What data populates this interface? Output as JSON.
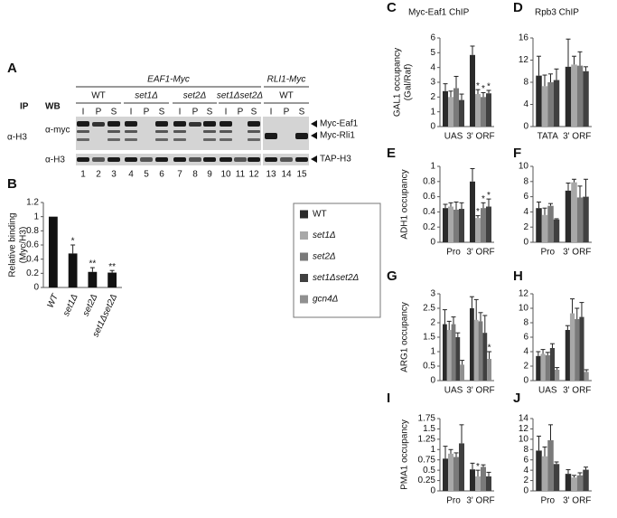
{
  "blot": {
    "panel": "A",
    "ip_header": "IP",
    "wb_header": "WB",
    "ip_antibody": "α-H3",
    "constructs": [
      "EAF1-Myc",
      "RLI1-Myc"
    ],
    "strains": [
      "WT",
      "set1Δ",
      "set2Δ",
      "set1Δset2Δ",
      "WT"
    ],
    "lanes": [
      "I",
      "P",
      "S",
      "I",
      "P",
      "S",
      "I",
      "P",
      "S",
      "I",
      "P",
      "S",
      "I",
      "P",
      "S"
    ],
    "lane_numbers": [
      1,
      2,
      3,
      4,
      5,
      6,
      7,
      8,
      9,
      10,
      11,
      12,
      13,
      14,
      15
    ],
    "wb_antibodies": [
      "α-myc",
      "α-H3"
    ],
    "bands": [
      "Myc-Eaf1",
      "Myc-Rli1",
      "TAP-H3"
    ]
  },
  "legend": [
    {
      "name": "WT",
      "color": "#2b2b2b"
    },
    {
      "name": "set1Δ",
      "color": "#a8a8a8"
    },
    {
      "name": "set2Δ",
      "color": "#7a7a7a"
    },
    {
      "name": "set1Δset2Δ",
      "color": "#404040"
    },
    {
      "name": "gcn4Δ",
      "color": "#909090"
    }
  ],
  "chart_data": [
    {
      "type": "bar",
      "panel": "B",
      "ylabel": [
        "Relative binding",
        "(Myc/H3)"
      ],
      "color": "#111111",
      "categories": [
        "WT",
        "set1Δ",
        "set2Δ",
        "set1Δset2Δ"
      ],
      "values": [
        1,
        0.48,
        0.22,
        0.21
      ],
      "errors": [
        null,
        0.12,
        0.06,
        0.03
      ],
      "ylim": [
        0,
        1.2
      ],
      "yticks": [
        0,
        0.2,
        0.4,
        0.6,
        0.8,
        1,
        1.2
      ],
      "annotations": [
        {
          "label": "*",
          "category": 1
        },
        {
          "label": "**",
          "category": 2
        },
        {
          "label": "**",
          "category": 3
        }
      ]
    },
    {
      "type": "bar",
      "panel": "C",
      "title": "Myc-Eaf1 ChIP",
      "ylabel": [
        "GAL1 occupancy",
        "(Gal/Raf)"
      ],
      "categories": [
        "UAS",
        "3' ORF"
      ],
      "series": [
        {
          "values": [
            2.4,
            4.85
          ],
          "errors": [
            0.5,
            0.6
          ]
        },
        {
          "values": [
            2.0,
            2.2
          ],
          "errors": [
            0.4,
            0.3
          ]
        },
        {
          "values": [
            2.6,
            2.0
          ],
          "errors": [
            0.8,
            0.3
          ]
        },
        {
          "values": [
            1.8,
            2.25
          ],
          "errors": [
            0.4,
            0.2
          ]
        }
      ],
      "ylim": [
        0,
        6
      ],
      "yticks": [
        0,
        1,
        2,
        3,
        4,
        5,
        6
      ],
      "annotations": [
        {
          "label": "*",
          "category": 1,
          "series": 1
        },
        {
          "label": "*",
          "category": 1,
          "series": 2
        },
        {
          "label": "*",
          "category": 1,
          "series": 3
        }
      ]
    },
    {
      "type": "bar",
      "panel": "D",
      "title": "Rpb3 ChIP",
      "categories": [
        "TATA",
        "3' ORF"
      ],
      "series": [
        {
          "values": [
            9.2,
            10.8
          ],
          "errors": [
            3.5,
            5.0
          ]
        },
        {
          "values": [
            7.3,
            11.2
          ],
          "errors": [
            2.0,
            1.5
          ]
        },
        {
          "values": [
            8.0,
            11.0
          ],
          "errors": [
            1.5,
            2.5
          ]
        },
        {
          "values": [
            8.4,
            10.0
          ],
          "errors": [
            2.0,
            0.8
          ]
        }
      ],
      "ylim": [
        0,
        16
      ],
      "yticks": [
        0,
        4,
        8,
        12,
        16
      ]
    },
    {
      "type": "bar",
      "panel": "E",
      "ylabel": [
        "ADH1 occupancy"
      ],
      "categories": [
        "Pro",
        "3' ORF"
      ],
      "series": [
        {
          "values": [
            0.45,
            0.8
          ],
          "errors": [
            0.05,
            0.17
          ]
        },
        {
          "values": [
            0.47,
            0.32
          ],
          "errors": [
            0.05,
            0.03
          ]
        },
        {
          "values": [
            0.43,
            0.45
          ],
          "errors": [
            0.1,
            0.07
          ]
        },
        {
          "values": [
            0.44,
            0.47
          ],
          "errors": [
            0.08,
            0.1
          ]
        }
      ],
      "ylim": [
        0,
        1
      ],
      "yticks": [
        0,
        0.2,
        0.4,
        0.6,
        0.8,
        1
      ],
      "annotations": [
        {
          "label": "*",
          "category": 1,
          "series": 1
        },
        {
          "label": "*",
          "category": 1,
          "series": 2
        },
        {
          "label": "*",
          "category": 1,
          "series": 3
        }
      ]
    },
    {
      "type": "bar",
      "panel": "F",
      "categories": [
        "Pro",
        "3' ORF"
      ],
      "series": [
        {
          "values": [
            4.5,
            6.8
          ],
          "errors": [
            0.8,
            1.0
          ]
        },
        {
          "values": [
            3.6,
            7.9
          ],
          "errors": [
            0.9,
            0.4
          ]
        },
        {
          "values": [
            4.8,
            5.9
          ],
          "errors": [
            0.3,
            1.5
          ]
        },
        {
          "values": [
            3.0,
            6.0
          ],
          "errors": [
            0.1,
            2.3
          ]
        }
      ],
      "ylim": [
        0,
        10
      ],
      "yticks": [
        0,
        2,
        4,
        6,
        8,
        10
      ]
    },
    {
      "type": "bar",
      "panel": "G",
      "ylabel": [
        "ARG1 occupancy"
      ],
      "categories": [
        "UAS",
        "3' ORF"
      ],
      "series": [
        {
          "values": [
            1.95,
            2.5
          ],
          "errors": [
            0.5,
            0.4
          ]
        },
        {
          "values": [
            1.75,
            2.1
          ],
          "errors": [
            0.3,
            0.7
          ]
        },
        {
          "values": [
            1.95,
            2.05
          ],
          "errors": [
            0.25,
            0.3
          ]
        },
        {
          "values": [
            1.5,
            1.65
          ],
          "errors": [
            0.15,
            0.6
          ]
        },
        {
          "values": [
            0.55,
            0.75
          ],
          "errors": [
            0.15,
            0.25
          ]
        }
      ],
      "ylim": [
        0,
        3
      ],
      "yticks": [
        0,
        0.5,
        1,
        1.5,
        2,
        2.5,
        3
      ],
      "annotations": [
        {
          "label": "*",
          "category": 1,
          "series": 4
        }
      ]
    },
    {
      "type": "bar",
      "panel": "H",
      "categories": [
        "UAS",
        "3' ORF"
      ],
      "series": [
        {
          "values": [
            3.4,
            7.0
          ],
          "errors": [
            0.6,
            0.6
          ]
        },
        {
          "values": [
            3.7,
            9.3
          ],
          "errors": [
            0.6,
            2.0
          ]
        },
        {
          "values": [
            3.5,
            8.5
          ],
          "errors": [
            0.4,
            1.5
          ]
        },
        {
          "values": [
            4.5,
            8.8
          ],
          "errors": [
            0.6,
            2.0
          ]
        },
        {
          "values": [
            1.5,
            1.2
          ],
          "errors": [
            0.3,
            0.3
          ]
        }
      ],
      "ylim": [
        0,
        12
      ],
      "yticks": [
        0,
        2,
        4,
        6,
        8,
        10,
        12
      ]
    },
    {
      "type": "bar",
      "panel": "I",
      "ylabel": [
        "PMA1 occupancy"
      ],
      "categories": [
        "Pro",
        "3' ORF"
      ],
      "series": [
        {
          "values": [
            0.78,
            0.52
          ],
          "errors": [
            0.3,
            0.15
          ]
        },
        {
          "values": [
            0.9,
            0.35
          ],
          "errors": [
            0.1,
            0.15
          ]
        },
        {
          "values": [
            0.82,
            0.58
          ],
          "errors": [
            0.1,
            0.05
          ]
        },
        {
          "values": [
            1.15,
            0.35
          ],
          "errors": [
            0.45,
            0.1
          ]
        }
      ],
      "ylim": [
        0,
        1.75
      ],
      "yticks": [
        0,
        0.25,
        0.5,
        0.75,
        1,
        1.25,
        1.5,
        1.75
      ],
      "annotations": [
        {
          "label": "*",
          "category": 1,
          "series": 1
        }
      ]
    },
    {
      "type": "bar",
      "panel": "J",
      "categories": [
        "Pro",
        "3' ORF"
      ],
      "series": [
        {
          "values": [
            7.8,
            3.3
          ],
          "errors": [
            2.8,
            0.8
          ]
        },
        {
          "values": [
            6.7,
            2.6
          ],
          "errors": [
            1.8,
            0.4
          ]
        },
        {
          "values": [
            9.8,
            3.0
          ],
          "errors": [
            3.0,
            0.5
          ]
        },
        {
          "values": [
            5.2,
            4.1
          ],
          "errors": [
            0.4,
            0.5
          ]
        }
      ],
      "ylim": [
        0,
        14
      ],
      "yticks": [
        0,
        2,
        4,
        6,
        8,
        10,
        12,
        14
      ]
    }
  ]
}
